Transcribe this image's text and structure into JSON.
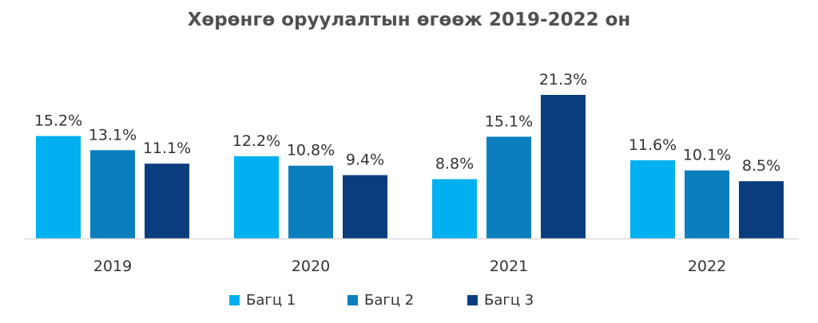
{
  "chart_data": {
    "type": "bar",
    "title": "Хөрөнгө оруулалтын өгөөж 2019-2022 он",
    "xlabel": "",
    "ylabel": "",
    "categories": [
      "2019",
      "2020",
      "2021",
      "2022"
    ],
    "series": [
      {
        "name": "Багц 1",
        "color": "#00B0F0",
        "values": [
          15.2,
          12.2,
          8.8,
          11.6
        ],
        "labels": [
          "15.2%",
          "12.2%",
          "8.8%",
          "11.6%"
        ]
      },
      {
        "name": "Багц 2",
        "color": "#0B7FBE",
        "values": [
          13.1,
          10.8,
          15.1,
          10.1
        ],
        "labels": [
          "13.1%",
          "10.8%",
          "15.1%",
          "10.1%"
        ]
      },
      {
        "name": "Багц 3",
        "color": "#0A3D7E",
        "values": [
          11.1,
          9.4,
          21.3,
          8.5
        ],
        "labels": [
          "11.1%",
          "9.4%",
          "21.3%",
          "8.5%"
        ]
      }
    ],
    "ylim": [
      0,
      21.3
    ],
    "grid": false,
    "legend": "bottom-center",
    "axis_color": "#D9D9D9"
  }
}
